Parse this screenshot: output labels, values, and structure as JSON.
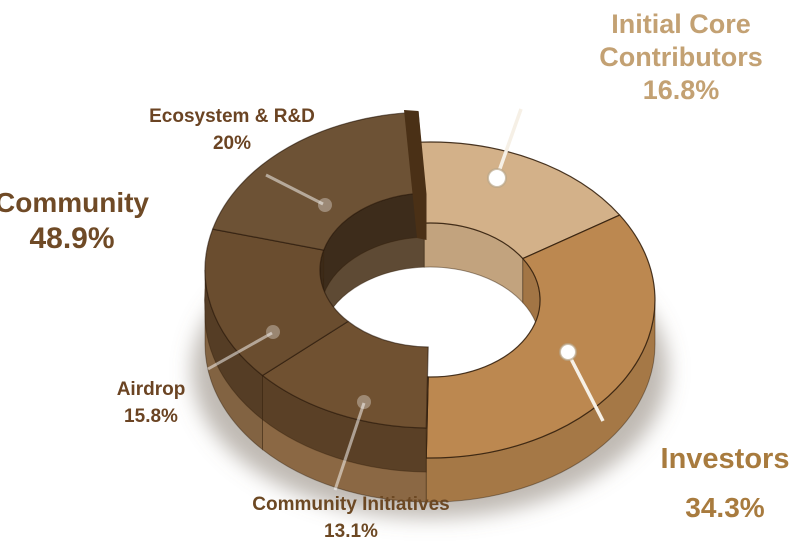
{
  "chart_data": {
    "type": "pie",
    "variant": "3d-donut",
    "unit": "%",
    "start_angle_deg": 93,
    "direction": "clockwise",
    "legend_position": "callouts-around-chart",
    "slices": [
      {
        "label": "Initial Core Contributors",
        "value": 16.8,
        "color": "#D3B189",
        "group": null
      },
      {
        "label": "Investors",
        "value": 34.3,
        "color": "#BC8850",
        "group": null
      },
      {
        "label": "Community Initiatives",
        "value": 13.1,
        "color": "#AE8255",
        "group": "Community"
      },
      {
        "label": "Airdrop",
        "value": 15.8,
        "color": "#A37C52",
        "group": "Community"
      },
      {
        "label": "Ecosystem & R&D",
        "value": 20,
        "color": "#A8845C",
        "group": "Community"
      }
    ],
    "groups": [
      {
        "label": "Community",
        "value": 48.9,
        "style": "raised translucent dark-brown overlay on left half"
      }
    ]
  },
  "callouts": {
    "initial_core_contributors": {
      "line1": "Initial Core",
      "line2": "Contributors",
      "pct": "16.8%",
      "color": "#C3A173"
    },
    "ecosystem_rnd": {
      "name": "Ecosystem & R&D",
      "pct": "20%",
      "color": "#6B4423"
    },
    "community": {
      "name": "Community",
      "pct": "48.9%",
      "color": "#6F4A26"
    },
    "airdrop": {
      "name": "Airdrop",
      "pct": "15.8%",
      "color": "#6B4423"
    },
    "community_initiatives": {
      "name": "Community Initiatives",
      "pct": "13.1%",
      "color": "#6C4823"
    },
    "investors": {
      "name": "Investors",
      "pct": "34.3%",
      "color": "#A87B3E"
    }
  }
}
